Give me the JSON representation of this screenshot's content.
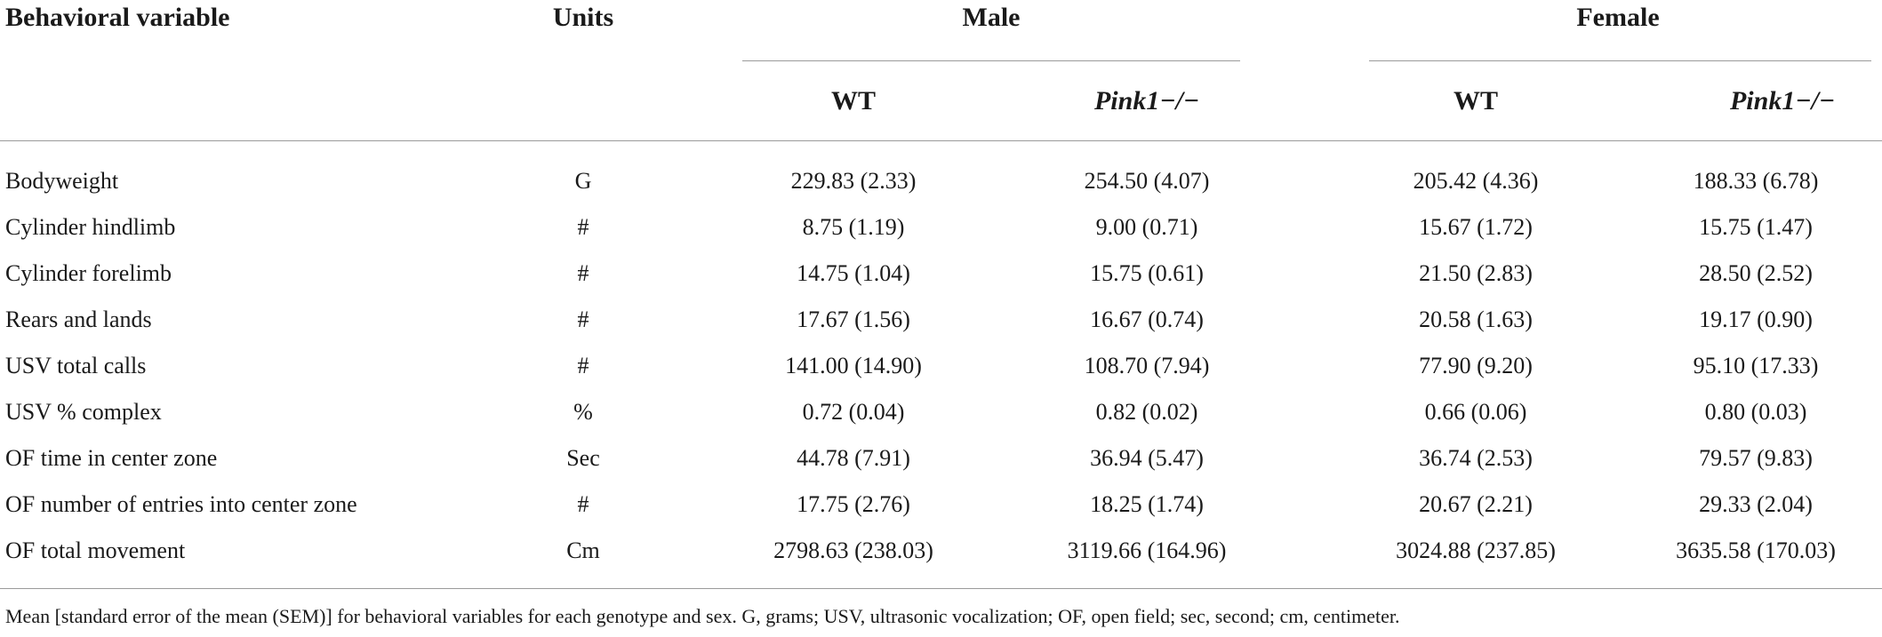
{
  "table": {
    "headers": {
      "variable": "Behavioral variable",
      "units": "Units",
      "male": "Male",
      "female": "Female",
      "male_wt": "WT",
      "male_ko": "Pink1−/−",
      "female_wt": "WT",
      "female_ko": "Pink1−/−"
    },
    "rows": [
      [
        "Bodyweight",
        "G",
        "229.83 (2.33)",
        "254.50 (4.07)",
        "205.42 (4.36)",
        "188.33 (6.78)"
      ],
      [
        "Cylinder hindlimb",
        "#",
        "8.75 (1.19)",
        "9.00 (0.71)",
        "15.67 (1.72)",
        "15.75 (1.47)"
      ],
      [
        "Cylinder forelimb",
        "#",
        "14.75 (1.04)",
        "15.75 (0.61)",
        "21.50 (2.83)",
        "28.50 (2.52)"
      ],
      [
        "Rears and lands",
        "#",
        "17.67 (1.56)",
        "16.67 (0.74)",
        "20.58 (1.63)",
        "19.17 (0.90)"
      ],
      [
        "USV total calls",
        "#",
        "141.00 (14.90)",
        "108.70 (7.94)",
        "77.90 (9.20)",
        "95.10 (17.33)"
      ],
      [
        "USV % complex",
        "%",
        "0.72 (0.04)",
        "0.82 (0.02)",
        "0.66 (0.06)",
        "0.80 (0.03)"
      ],
      [
        "OF time in center zone",
        "Sec",
        "44.78 (7.91)",
        "36.94 (5.47)",
        "36.74 (2.53)",
        "79.57 (9.83)"
      ],
      [
        "OF number of entries into center zone",
        "#",
        "17.75 (2.76)",
        "18.25 (1.74)",
        "20.67 (2.21)",
        "29.33 (2.04)"
      ],
      [
        "OF total movement",
        "Cm",
        "2798.63 (238.03)",
        "3119.66 (164.96)",
        "3024.88 (237.85)",
        "3635.58 (170.03)"
      ]
    ],
    "footnote": "Mean [standard error of the mean (SEM)] for behavioral variables for each genotype and sex. G, grams; USV, ultrasonic vocalization; OF, open field; sec, second; cm, centimeter."
  }
}
